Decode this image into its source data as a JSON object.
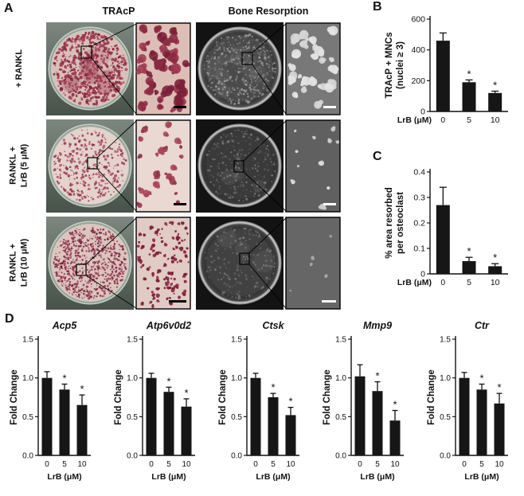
{
  "figure": {
    "panels": {
      "A": {
        "label": "A",
        "column_headers": [
          "TRAcP",
          "Bone Resorption"
        ],
        "rows": [
          {
            "label": "+ RANKL"
          },
          {
            "label": "RANKL +\nLrB (5 μM)"
          },
          {
            "label": "RANKL +\nLrB (10 μM)"
          }
        ]
      },
      "B": {
        "label": "B"
      },
      "C": {
        "label": "C"
      },
      "D": {
        "label": "D"
      }
    }
  },
  "chart_data": [
    {
      "id": "B",
      "type": "bar",
      "title": "",
      "ylabel_lines": [
        "TRAcP + MNCs",
        "(nuclei ≥ 3)"
      ],
      "xlabel": "LrB (μM)",
      "categories": [
        "0",
        "5",
        "10"
      ],
      "values": [
        460,
        190,
        120
      ],
      "errors": [
        50,
        15,
        12
      ],
      "significance": [
        "",
        "*",
        "*"
      ],
      "ylim": [
        0,
        600
      ],
      "yticks": [
        0,
        200,
        400,
        600
      ],
      "ytick_labels": [
        "0",
        "200",
        "400",
        "600"
      ]
    },
    {
      "id": "C",
      "type": "bar",
      "title": "",
      "ylabel_lines": [
        "% area resorbed",
        "per osteoclast"
      ],
      "xlabel": "LrB (μM)",
      "categories": [
        "0",
        "5",
        "10"
      ],
      "values": [
        0.27,
        0.05,
        0.03
      ],
      "errors": [
        0.07,
        0.015,
        0.01
      ],
      "significance": [
        "",
        "*",
        "*"
      ],
      "ylim": [
        0,
        0.4
      ],
      "yticks": [
        0,
        0.1,
        0.2,
        0.3,
        0.4
      ],
      "ytick_labels": [
        "0",
        "0.1",
        "0.2",
        "0.3",
        "0.4"
      ]
    },
    {
      "id": "D1",
      "type": "bar",
      "title": "Acp5",
      "ylabel_lines": [
        "Fold Change"
      ],
      "xlabel": "LrB (μM)",
      "categories": [
        "0",
        "5",
        "10"
      ],
      "values": [
        1.0,
        0.85,
        0.65
      ],
      "errors": [
        0.08,
        0.07,
        0.13
      ],
      "significance": [
        "",
        "*",
        "*"
      ],
      "ylim": [
        0,
        1.5
      ],
      "yticks": [
        0,
        0.5,
        1.0,
        1.5
      ],
      "ytick_labels": [
        "0.0",
        "0.5",
        "1.0",
        "1.5"
      ]
    },
    {
      "id": "D2",
      "type": "bar",
      "title": "Atp6v0d2",
      "ylabel_lines": [
        "Fold Change"
      ],
      "xlabel": "LrB (μM)",
      "categories": [
        "0",
        "5",
        "10"
      ],
      "values": [
        1.0,
        0.82,
        0.63
      ],
      "errors": [
        0.06,
        0.06,
        0.1
      ],
      "significance": [
        "",
        "*",
        "*"
      ],
      "ylim": [
        0,
        1.5
      ],
      "yticks": [
        0,
        0.5,
        1.0,
        1.5
      ],
      "ytick_labels": [
        "0.0",
        "0.5",
        "1.0",
        "1.5"
      ]
    },
    {
      "id": "D3",
      "type": "bar",
      "title": "Ctsk",
      "ylabel_lines": [
        "Fold Change"
      ],
      "xlabel": "LrB (μM)",
      "categories": [
        "0",
        "5",
        "10"
      ],
      "values": [
        1.0,
        0.75,
        0.52
      ],
      "errors": [
        0.06,
        0.05,
        0.1
      ],
      "significance": [
        "",
        "*",
        "*"
      ],
      "ylim": [
        0,
        1.5
      ],
      "yticks": [
        0,
        0.5,
        1.0,
        1.5
      ],
      "ytick_labels": [
        "0.0",
        "0.5",
        "1.0",
        "1.5"
      ]
    },
    {
      "id": "D4",
      "type": "bar",
      "title": "Mmp9",
      "ylabel_lines": [
        "Fold Change"
      ],
      "xlabel": "LrB (μM)",
      "categories": [
        "0",
        "5",
        "10"
      ],
      "values": [
        1.02,
        0.83,
        0.45
      ],
      "errors": [
        0.15,
        0.12,
        0.13
      ],
      "significance": [
        "",
        "*",
        "*"
      ],
      "ylim": [
        0,
        1.5
      ],
      "yticks": [
        0,
        0.5,
        1.0,
        1.5
      ],
      "ytick_labels": [
        "0.0",
        "0.5",
        "1.0",
        "1.5"
      ]
    },
    {
      "id": "D5",
      "type": "bar",
      "title": "Ctr",
      "ylabel_lines": [
        "Fold Change"
      ],
      "xlabel": "LrB (μM)",
      "categories": [
        "0",
        "5",
        "10"
      ],
      "values": [
        1.0,
        0.85,
        0.67
      ],
      "errors": [
        0.07,
        0.07,
        0.13
      ],
      "significance": [
        "",
        "*",
        "*"
      ],
      "ylim": [
        0,
        1.5
      ],
      "yticks": [
        0,
        0.5,
        1.0,
        1.5
      ],
      "ytick_labels": [
        "0.0",
        "0.5",
        "1.0",
        "1.5"
      ]
    }
  ]
}
